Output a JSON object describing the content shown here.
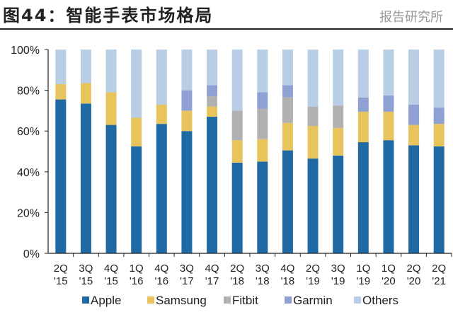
{
  "title": {
    "prefix": "图44：",
    "text": "智能手表市场格局"
  },
  "watermark": "报告研究所",
  "chart_data": {
    "type": "bar",
    "stacked": true,
    "title": "智能手表市场格局",
    "xlabel": "",
    "ylabel": "",
    "ylim": [
      0,
      100
    ],
    "yticks": [
      "0%",
      "20%",
      "40%",
      "60%",
      "80%",
      "100%"
    ],
    "grid": false,
    "legend": "bottom",
    "categories": [
      [
        "2Q",
        "'15"
      ],
      [
        "3Q",
        "'15"
      ],
      [
        "4Q",
        "'15"
      ],
      [
        "1Q",
        "'16"
      ],
      [
        "4Q",
        "'16"
      ],
      [
        "3Q",
        "'17"
      ],
      [
        "4Q",
        "'17"
      ],
      [
        "2Q",
        "'18"
      ],
      [
        "3Q",
        "'18"
      ],
      [
        "4Q",
        "'18"
      ],
      [
        "2Q",
        "'19"
      ],
      [
        "3Q",
        "'19"
      ],
      [
        "1Q",
        "'19"
      ],
      [
        "1Q",
        "'20"
      ],
      [
        "2Q",
        "'20"
      ],
      [
        "2Q",
        "'21"
      ]
    ],
    "series": [
      {
        "name": "Apple",
        "color": "#1f6aa5",
        "values": [
          75.5,
          73.5,
          63,
          52.5,
          63.5,
          60,
          67,
          44.5,
          45,
          50.5,
          46.5,
          48,
          54.5,
          55.5,
          53,
          52.5
        ]
      },
      {
        "name": "Samsung",
        "color": "#e8c45c",
        "values": [
          7.5,
          10,
          16,
          14,
          9.5,
          10,
          5,
          11,
          11,
          13.5,
          16,
          13.5,
          15,
          14,
          10,
          11
        ]
      },
      {
        "name": "Fitbit",
        "color": "#b1b1b1",
        "values": [
          0,
          0,
          0,
          0,
          0,
          0,
          5,
          14.5,
          15,
          12.5,
          9.5,
          11,
          0,
          0,
          0,
          0
        ]
      },
      {
        "name": "Garmin",
        "color": "#8fa1d3",
        "values": [
          0,
          0,
          0,
          0,
          0,
          10,
          5.5,
          0,
          8,
          6,
          0,
          0,
          7,
          8,
          10,
          8
        ]
      },
      {
        "name": "Others",
        "color": "#b7cee5",
        "values": [
          17,
          16.5,
          21,
          33.5,
          27,
          20,
          17.5,
          30,
          21,
          17.5,
          28,
          27.5,
          23.5,
          22.5,
          27,
          28.5
        ]
      }
    ]
  }
}
